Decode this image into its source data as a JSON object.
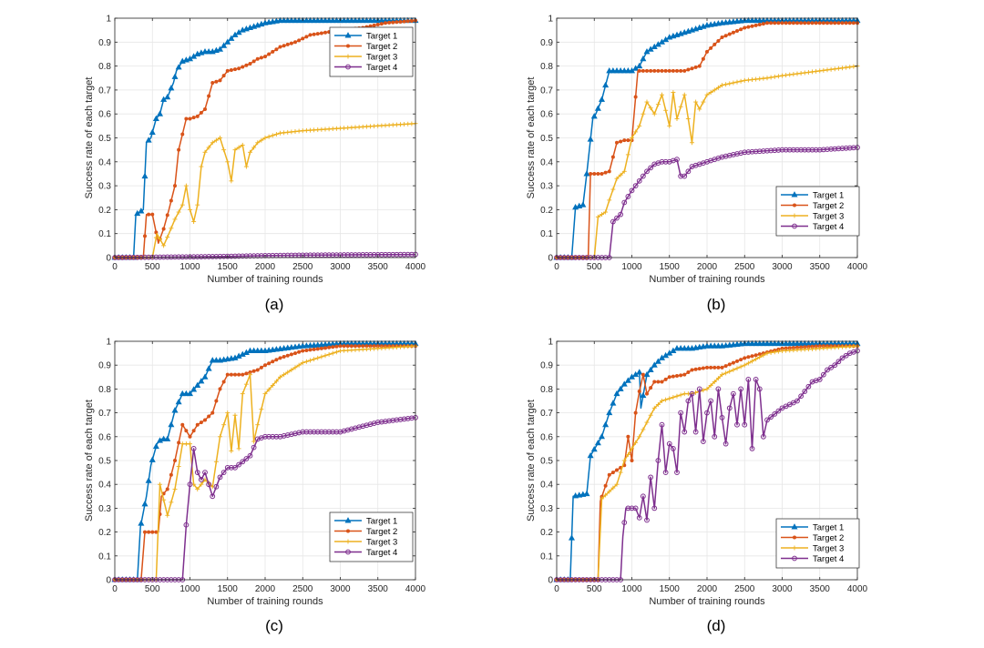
{
  "chart_data": [
    {
      "type": "line",
      "caption": "(a)",
      "xlabel": "Number of training rounds",
      "ylabel": "Success rate of each target",
      "xlim": [
        0,
        4000
      ],
      "ylim": [
        0,
        1
      ],
      "xticks": [
        "0",
        "500",
        "1000",
        "1500",
        "2000",
        "2500",
        "3000",
        "3500",
        "4000"
      ],
      "yticks": [
        "0",
        "0.1",
        "0.2",
        "0.3",
        "0.4",
        "0.5",
        "0.6",
        "0.7",
        "0.8",
        "0.9",
        "1"
      ],
      "grid": true,
      "legend_position": "top-right",
      "series": [
        {
          "name": "Target 1",
          "color": "#0072bd",
          "marker": "triangle",
          "x": [
            0,
            250,
            280,
            380,
            420,
            480,
            550,
            600,
            650,
            700,
            780,
            820,
            900,
            1000,
            1100,
            1200,
            1300,
            1400,
            1500,
            1600,
            1700,
            1800,
            1900,
            2000,
            2200,
            2500,
            3000,
            3500,
            4000
          ],
          "y": [
            0,
            0,
            0.18,
            0.2,
            0.48,
            0.5,
            0.58,
            0.6,
            0.66,
            0.67,
            0.73,
            0.78,
            0.82,
            0.83,
            0.85,
            0.86,
            0.86,
            0.87,
            0.9,
            0.93,
            0.95,
            0.96,
            0.97,
            0.98,
            0.99,
            0.99,
            0.99,
            0.99,
            0.99
          ]
        },
        {
          "name": "Target 2",
          "color": "#d95319",
          "marker": "dot",
          "x": [
            0,
            380,
            420,
            500,
            580,
            650,
            720,
            800,
            850,
            950,
            1000,
            1100,
            1200,
            1300,
            1400,
            1500,
            1650,
            1800,
            1900,
            2000,
            2200,
            2400,
            2600,
            2800,
            3000,
            3300,
            3600,
            4000
          ],
          "y": [
            0,
            0,
            0.18,
            0.18,
            0.06,
            0.12,
            0.2,
            0.3,
            0.45,
            0.58,
            0.58,
            0.59,
            0.62,
            0.73,
            0.74,
            0.78,
            0.79,
            0.81,
            0.83,
            0.84,
            0.88,
            0.9,
            0.93,
            0.94,
            0.95,
            0.96,
            0.98,
            0.99
          ]
        },
        {
          "name": "Target 3",
          "color": "#edb120",
          "marker": "plus",
          "x": [
            0,
            500,
            560,
            650,
            720,
            800,
            900,
            950,
            1000,
            1050,
            1100,
            1150,
            1200,
            1300,
            1400,
            1500,
            1550,
            1600,
            1700,
            1750,
            1800,
            1900,
            2000,
            2200,
            2500,
            3000,
            3500,
            4000
          ],
          "y": [
            0,
            0,
            0.1,
            0.05,
            0.1,
            0.16,
            0.22,
            0.3,
            0.2,
            0.15,
            0.22,
            0.38,
            0.44,
            0.48,
            0.5,
            0.4,
            0.32,
            0.45,
            0.47,
            0.38,
            0.44,
            0.48,
            0.5,
            0.52,
            0.53,
            0.54,
            0.55,
            0.56
          ]
        },
        {
          "name": "Target 4",
          "color": "#7e2f8e",
          "marker": "circle",
          "x": [
            0,
            1000,
            1500,
            2000,
            2500,
            3000,
            3500,
            4000
          ],
          "y": [
            0,
            0.003,
            0.005,
            0.008,
            0.01,
            0.011,
            0.012,
            0.013
          ]
        }
      ]
    },
    {
      "type": "line",
      "caption": "(b)",
      "xlabel": "Number of training rounds",
      "ylabel": "Success rate of each target",
      "xlim": [
        0,
        4000
      ],
      "ylim": [
        0,
        1
      ],
      "xticks": [
        "0",
        "500",
        "1000",
        "1500",
        "2000",
        "2500",
        "3000",
        "3500",
        "4000"
      ],
      "yticks": [
        "0",
        "0.1",
        "0.2",
        "0.3",
        "0.4",
        "0.5",
        "0.6",
        "0.7",
        "0.8",
        "0.9",
        "1"
      ],
      "grid": true,
      "legend_position": "bottom-right",
      "series": [
        {
          "name": "Target 1",
          "color": "#0072bd",
          "marker": "triangle",
          "x": [
            0,
            200,
            250,
            350,
            400,
            480,
            520,
            600,
            700,
            750,
            800,
            900,
            1000,
            1100,
            1200,
            1300,
            1400,
            1500,
            1600,
            1800,
            2000,
            2200,
            2500,
            3000,
            3500,
            4000
          ],
          "y": [
            0,
            0,
            0.21,
            0.22,
            0.35,
            0.58,
            0.6,
            0.66,
            0.78,
            0.78,
            0.78,
            0.78,
            0.78,
            0.8,
            0.86,
            0.88,
            0.9,
            0.92,
            0.93,
            0.95,
            0.97,
            0.98,
            0.99,
            0.99,
            0.99,
            0.99
          ]
        },
        {
          "name": "Target 2",
          "color": "#d95319",
          "marker": "dot",
          "x": [
            0,
            420,
            450,
            600,
            700,
            800,
            900,
            1000,
            1080,
            1100,
            1300,
            1500,
            1700,
            1900,
            2000,
            2200,
            2500,
            2800,
            3000,
            3500,
            4000
          ],
          "y": [
            0,
            0,
            0.35,
            0.35,
            0.36,
            0.48,
            0.49,
            0.49,
            0.78,
            0.78,
            0.78,
            0.78,
            0.78,
            0.8,
            0.86,
            0.92,
            0.96,
            0.98,
            0.98,
            0.98,
            0.98
          ]
        },
        {
          "name": "Target 3",
          "color": "#edb120",
          "marker": "plus",
          "x": [
            0,
            500,
            550,
            650,
            700,
            800,
            900,
            1000,
            1100,
            1200,
            1300,
            1400,
            1500,
            1550,
            1600,
            1700,
            1800,
            1850,
            1900,
            2000,
            2200,
            2500,
            2800,
            3000,
            3500,
            4000
          ],
          "y": [
            0,
            0,
            0.17,
            0.19,
            0.24,
            0.33,
            0.36,
            0.5,
            0.55,
            0.65,
            0.6,
            0.68,
            0.55,
            0.69,
            0.58,
            0.68,
            0.48,
            0.65,
            0.62,
            0.68,
            0.72,
            0.74,
            0.75,
            0.76,
            0.78,
            0.8
          ]
        },
        {
          "name": "Target 4",
          "color": "#7e2f8e",
          "marker": "circle",
          "x": [
            0,
            700,
            750,
            850,
            900,
            1000,
            1100,
            1200,
            1300,
            1400,
            1500,
            1600,
            1650,
            1700,
            1800,
            1900,
            2000,
            2200,
            2500,
            3000,
            3500,
            4000
          ],
          "y": [
            0,
            0,
            0.15,
            0.18,
            0.23,
            0.28,
            0.32,
            0.36,
            0.39,
            0.4,
            0.4,
            0.41,
            0.34,
            0.34,
            0.38,
            0.39,
            0.4,
            0.42,
            0.44,
            0.45,
            0.45,
            0.46
          ]
        }
      ]
    },
    {
      "type": "line",
      "caption": "(c)",
      "xlabel": "Number of training rounds",
      "ylabel": "Success rate of each target",
      "xlim": [
        0,
        4000
      ],
      "ylim": [
        0,
        1
      ],
      "xticks": [
        "0",
        "500",
        "1000",
        "1500",
        "2000",
        "2500",
        "3000",
        "3500",
        "4000"
      ],
      "yticks": [
        "0",
        "0.1",
        "0.2",
        "0.3",
        "0.4",
        "0.5",
        "0.6",
        "0.7",
        "0.8",
        "0.9",
        "1"
      ],
      "grid": true,
      "legend_position": "bottom-right",
      "series": [
        {
          "name": "Target 1",
          "color": "#0072bd",
          "marker": "triangle",
          "x": [
            0,
            300,
            340,
            420,
            480,
            560,
            620,
            700,
            800,
            900,
            1000,
            1200,
            1300,
            1400,
            1600,
            1800,
            2000,
            2500,
            3000,
            3500,
            4000
          ],
          "y": [
            0,
            0,
            0.22,
            0.35,
            0.48,
            0.57,
            0.59,
            0.59,
            0.71,
            0.78,
            0.78,
            0.85,
            0.92,
            0.92,
            0.93,
            0.96,
            0.96,
            0.98,
            0.99,
            0.99,
            0.99
          ]
        },
        {
          "name": "Target 2",
          "color": "#d95319",
          "marker": "dot",
          "x": [
            0,
            350,
            400,
            580,
            620,
            700,
            800,
            900,
            1000,
            1100,
            1200,
            1300,
            1400,
            1500,
            1700,
            1900,
            2000,
            2200,
            2500,
            3000,
            3500,
            4000
          ],
          "y": [
            0,
            0,
            0.2,
            0.2,
            0.35,
            0.38,
            0.5,
            0.65,
            0.6,
            0.65,
            0.67,
            0.7,
            0.8,
            0.86,
            0.86,
            0.88,
            0.9,
            0.93,
            0.96,
            0.98,
            0.98,
            0.98
          ]
        },
        {
          "name": "Target 3",
          "color": "#edb120",
          "marker": "plus",
          "x": [
            0,
            550,
            600,
            700,
            800,
            900,
            1000,
            1050,
            1100,
            1200,
            1300,
            1400,
            1500,
            1550,
            1600,
            1650,
            1700,
            1800,
            1850,
            1900,
            2000,
            2200,
            2500,
            3000,
            3500,
            4000
          ],
          "y": [
            0,
            0,
            0.4,
            0.27,
            0.38,
            0.57,
            0.57,
            0.4,
            0.38,
            0.42,
            0.39,
            0.6,
            0.7,
            0.54,
            0.69,
            0.55,
            0.78,
            0.86,
            0.58,
            0.65,
            0.78,
            0.85,
            0.91,
            0.96,
            0.97,
            0.98
          ]
        },
        {
          "name": "Target 4",
          "color": "#7e2f8e",
          "marker": "circle",
          "x": [
            0,
            900,
            950,
            1000,
            1050,
            1100,
            1150,
            1200,
            1300,
            1400,
            1500,
            1600,
            1800,
            1900,
            2000,
            2200,
            2500,
            3000,
            3500,
            4000
          ],
          "y": [
            0,
            0,
            0.23,
            0.4,
            0.55,
            0.45,
            0.42,
            0.45,
            0.35,
            0.43,
            0.47,
            0.47,
            0.52,
            0.59,
            0.6,
            0.6,
            0.62,
            0.62,
            0.66,
            0.68
          ]
        }
      ]
    },
    {
      "type": "line",
      "caption": "(d)",
      "xlabel": "Number of training rounds",
      "ylabel": "Success rate of each target",
      "xlim": [
        0,
        4000
      ],
      "ylim": [
        0,
        1
      ],
      "xticks": [
        "0",
        "500",
        "1000",
        "1500",
        "2000",
        "2500",
        "3000",
        "3500",
        "4000"
      ],
      "yticks": [
        "0",
        "0.1",
        "0.2",
        "0.3",
        "0.4",
        "0.5",
        "0.6",
        "0.7",
        "0.8",
        "0.9",
        "1"
      ],
      "grid": true,
      "legend_position": "bottom-right",
      "series": [
        {
          "name": "Target 1",
          "color": "#0072bd",
          "marker": "triangle",
          "x": [
            0,
            180,
            220,
            400,
            450,
            600,
            700,
            800,
            900,
            1000,
            1100,
            1120,
            1200,
            1300,
            1400,
            1500,
            1600,
            1800,
            2000,
            2200,
            2500,
            3000,
            3500,
            4000
          ],
          "y": [
            0,
            0,
            0.35,
            0.36,
            0.52,
            0.6,
            0.7,
            0.78,
            0.82,
            0.85,
            0.87,
            0.72,
            0.86,
            0.9,
            0.93,
            0.95,
            0.97,
            0.97,
            0.98,
            0.98,
            0.99,
            0.99,
            0.99,
            0.99
          ]
        },
        {
          "name": "Target 2",
          "color": "#d95319",
          "marker": "dot",
          "x": [
            0,
            550,
            580,
            700,
            800,
            900,
            950,
            1000,
            1050,
            1100,
            1150,
            1200,
            1300,
            1400,
            1500,
            1700,
            1800,
            2000,
            2200,
            2500,
            3000,
            3500,
            4000
          ],
          "y": [
            0,
            0,
            0.33,
            0.44,
            0.46,
            0.48,
            0.6,
            0.5,
            0.7,
            0.79,
            0.86,
            0.78,
            0.83,
            0.83,
            0.85,
            0.86,
            0.88,
            0.89,
            0.89,
            0.93,
            0.97,
            0.98,
            0.98
          ]
        },
        {
          "name": "Target 3",
          "color": "#edb120",
          "marker": "plus",
          "x": [
            0,
            550,
            600,
            700,
            800,
            900,
            1000,
            1100,
            1200,
            1300,
            1400,
            1500,
            1700,
            1800,
            2000,
            2200,
            2500,
            2800,
            3000,
            3500,
            4000
          ],
          "y": [
            0,
            0,
            0.34,
            0.37,
            0.4,
            0.5,
            0.55,
            0.6,
            0.66,
            0.72,
            0.75,
            0.76,
            0.78,
            0.78,
            0.8,
            0.86,
            0.9,
            0.95,
            0.96,
            0.97,
            0.98
          ]
        },
        {
          "name": "Target 4",
          "color": "#7e2f8e",
          "marker": "circle",
          "x": [
            0,
            850,
            880,
            920,
            1000,
            1050,
            1100,
            1150,
            1200,
            1250,
            1300,
            1350,
            1400,
            1450,
            1500,
            1550,
            1600,
            1650,
            1700,
            1750,
            1800,
            1850,
            1900,
            1950,
            2000,
            2050,
            2100,
            2150,
            2200,
            2250,
            2300,
            2350,
            2400,
            2450,
            2500,
            2550,
            2600,
            2650,
            2700,
            2750,
            2800,
            3000,
            3200,
            3400,
            3500,
            3600,
            3700,
            3800,
            3900,
            4000
          ],
          "y": [
            0,
            0,
            0.18,
            0.3,
            0.3,
            0.3,
            0.26,
            0.35,
            0.25,
            0.43,
            0.3,
            0.5,
            0.65,
            0.45,
            0.57,
            0.55,
            0.45,
            0.7,
            0.62,
            0.75,
            0.78,
            0.62,
            0.8,
            0.58,
            0.7,
            0.75,
            0.6,
            0.8,
            0.68,
            0.57,
            0.72,
            0.78,
            0.65,
            0.8,
            0.65,
            0.84,
            0.55,
            0.84,
            0.8,
            0.6,
            0.67,
            0.72,
            0.75,
            0.83,
            0.84,
            0.88,
            0.9,
            0.93,
            0.95,
            0.96
          ]
        }
      ]
    }
  ]
}
